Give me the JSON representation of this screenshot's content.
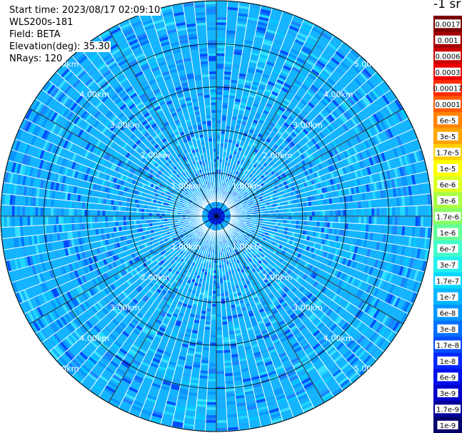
{
  "header": {
    "start_time": "Start time: 2023/08/17 02:09:10",
    "instrument": "WLS200s-181",
    "field": "Field: BETA",
    "elevation": "Elevation(deg): 35.30",
    "nrays": "NRays: 120"
  },
  "colorbar": {
    "unit": "-1 sr",
    "labels": [
      "0.0017",
      "0.001",
      "0.0006",
      "0.0003",
      "0.00017",
      "0.0001",
      "6e-5",
      "3e-5",
      "1.7e-5",
      "1e-5",
      "6e-6",
      "3e-6",
      "1.7e-6",
      "1e-6",
      "6e-7",
      "3e-7",
      "1.7e-7",
      "1e-7",
      "6e-8",
      "3e-8",
      "1.7e-8",
      "1e-8",
      "6e-9",
      "3e-9",
      "1.7e-9",
      "1e-9"
    ],
    "colors": [
      "#7a0000",
      "#a40000",
      "#cc0000",
      "#ee0000",
      "#ff2a00",
      "#ff5a00",
      "#ff8500",
      "#ffa500",
      "#ffd000",
      "#ffff00",
      "#ddff22",
      "#aaff44",
      "#88ff66",
      "#66ff99",
      "#44ffcc",
      "#22f0ee",
      "#00d8ff",
      "#00b6ff",
      "#0096ff",
      "#0070ff",
      "#004cff",
      "#0028ff",
      "#0010ee",
      "#0000cc",
      "#000099",
      "#00006a"
    ]
  },
  "chart_data": {
    "type": "heatmap",
    "projection": "polar PPI",
    "field": "BETA",
    "rays": 120,
    "range_rings_km": [
      1.0,
      2.0,
      3.0,
      4.0,
      5.0
    ],
    "ring_labels": [
      "1.00km",
      "2.00km",
      "3.00km",
      "4.00km",
      "5.00km"
    ],
    "max_range_km": 5.0,
    "dominant_value_range": [
      "1.7e-8",
      "1.7e-7"
    ]
  }
}
